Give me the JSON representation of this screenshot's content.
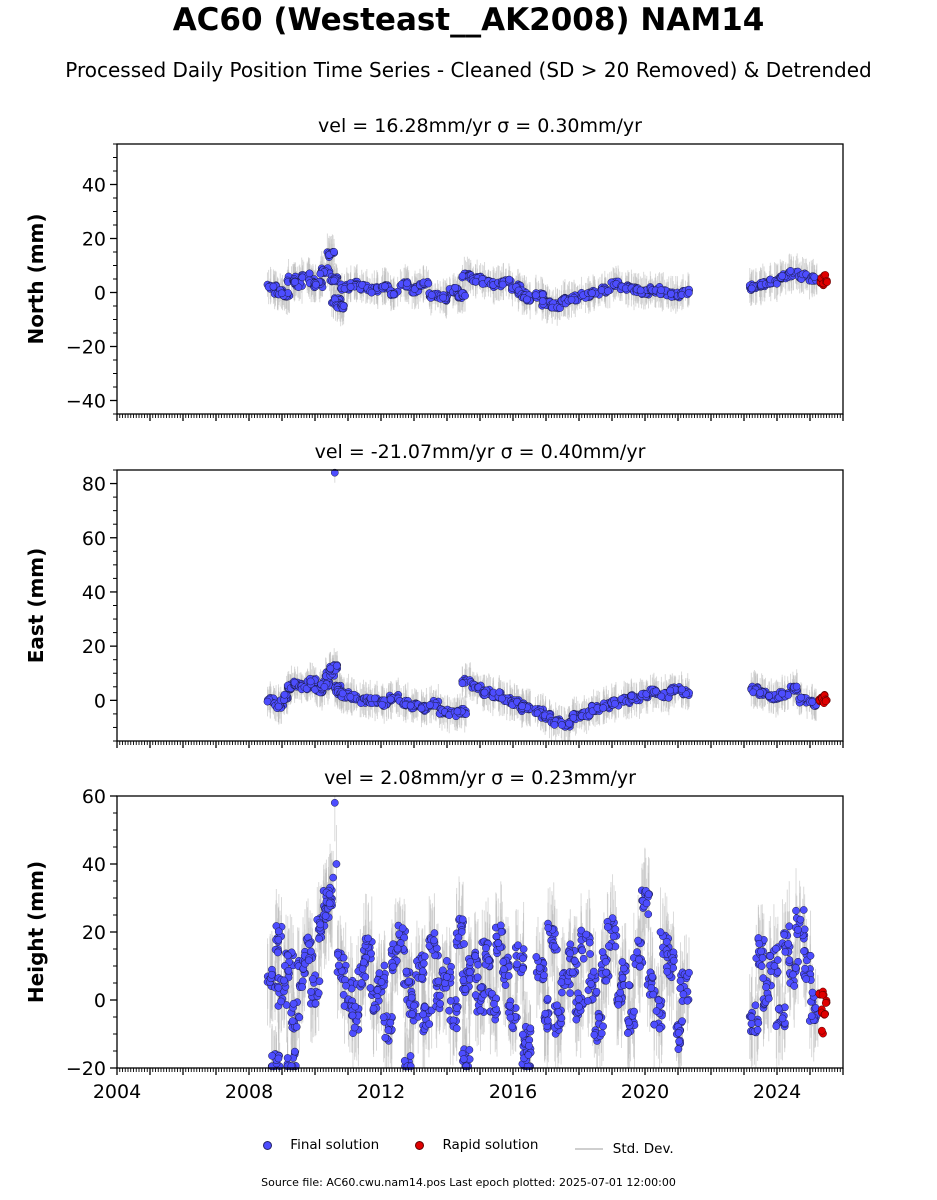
{
  "header": {
    "title": "AC60 (Westeast__AK2008) NAM14",
    "subtitle": "Processed Daily Position Time Series - Cleaned (SD > 20 Removed) & Detrended"
  },
  "legend": {
    "final": "Final solution",
    "rapid": "Rapid solution",
    "std": "Std. Dev."
  },
  "footer": {
    "text": "Source file: AC60.cwu.nam14.pos  Last epoch plotted: 2025-07-01 12:00:00"
  },
  "colors": {
    "final": "#4d4dff",
    "rapid": "#e00000",
    "std_dev": "#bdbdbd"
  },
  "chart_data": [
    {
      "type": "scatter",
      "title": "vel = 16.28mm/yr   σ = 0.30mm/yr",
      "ylabel": "North (mm)",
      "xlim": [
        2004,
        2026
      ],
      "ylim": [
        -45,
        55
      ],
      "yticks": [
        -40,
        -20,
        0,
        20,
        40
      ],
      "series": [
        {
          "name": "Final solution",
          "x": [
            2008.7,
            2008.9,
            2009.1,
            2009.3,
            2009.5,
            2009.7,
            2009.9,
            2010.1,
            2010.3,
            2010.45,
            2010.55,
            2010.65,
            2010.75,
            2010.9,
            2011.2,
            2011.5,
            2011.8,
            2012.1,
            2012.4,
            2012.7,
            2013.0,
            2013.3,
            2013.6,
            2013.9,
            2014.2,
            2014.45,
            2014.6,
            2014.9,
            2015.2,
            2015.5,
            2015.8,
            2016.1,
            2016.3,
            2016.4,
            2016.8,
            2017.0,
            2017.3,
            2017.6,
            2017.9,
            2018.2,
            2018.5,
            2018.8,
            2019.1,
            2019.4,
            2019.7,
            2020.0,
            2020.3,
            2020.6,
            2020.9,
            2021.2,
            2023.3,
            2023.6,
            2023.9,
            2024.2,
            2024.5,
            2024.8,
            2025.1
          ],
          "y": [
            2,
            0,
            -1,
            5,
            3,
            6,
            4,
            3,
            8,
            14,
            5,
            -3,
            -5,
            2,
            3,
            2,
            1,
            2,
            0,
            3,
            1,
            3,
            -1,
            -2,
            1,
            -1,
            6,
            5,
            4,
            3,
            4,
            2,
            0,
            -2,
            -1,
            -4,
            -5,
            -3,
            -2,
            -1,
            0,
            1,
            3,
            2,
            1,
            0,
            1,
            0,
            -1,
            0,
            2,
            3,
            4,
            6,
            7,
            6,
            5
          ]
        },
        {
          "name": "Rapid solution",
          "x": [
            2025.3,
            2025.35,
            2025.4,
            2025.45,
            2025.5
          ],
          "y": [
            4,
            5,
            3,
            6,
            4
          ]
        }
      ]
    },
    {
      "type": "scatter",
      "title": "vel = -21.07mm/yr   σ = 0.40mm/yr",
      "ylabel": "East (mm)",
      "xlim": [
        2004,
        2026
      ],
      "ylim": [
        -15,
        85
      ],
      "yticks": [
        0,
        20,
        40,
        60,
        80
      ],
      "series": [
        {
          "name": "Final solution",
          "x": [
            2008.7,
            2008.9,
            2009.1,
            2009.3,
            2009.5,
            2009.7,
            2009.9,
            2010.1,
            2010.3,
            2010.45,
            2010.55,
            2010.65,
            2010.75,
            2010.9,
            2011.2,
            2011.5,
            2011.8,
            2012.1,
            2012.4,
            2012.7,
            2013.0,
            2013.3,
            2013.6,
            2013.9,
            2014.2,
            2014.45,
            2014.6,
            2014.9,
            2015.2,
            2015.5,
            2015.8,
            2016.1,
            2016.3,
            2016.4,
            2016.8,
            2017.0,
            2017.3,
            2017.6,
            2017.9,
            2018.2,
            2018.5,
            2018.8,
            2019.1,
            2019.4,
            2019.7,
            2020.0,
            2020.3,
            2020.6,
            2020.9,
            2021.2,
            2023.3,
            2023.6,
            2023.9,
            2024.2,
            2024.5,
            2024.8,
            2025.1,
            2010.6
          ],
          "y": [
            0,
            -2,
            1,
            5,
            6,
            5,
            7,
            4,
            6,
            10,
            12,
            5,
            3,
            2,
            1,
            0,
            0,
            -1,
            1,
            -1,
            -2,
            -3,
            -1,
            -4,
            -5,
            -4,
            7,
            5,
            3,
            2,
            0,
            -1,
            -2,
            -3,
            -4,
            -6,
            -8,
            -9,
            -6,
            -5,
            -3,
            -2,
            -1,
            0,
            1,
            2,
            3,
            2,
            4,
            3,
            4,
            3,
            1,
            2,
            4,
            0,
            -1,
            84
          ]
        },
        {
          "name": "Rapid solution",
          "x": [
            2025.3,
            2025.35,
            2025.4,
            2025.45,
            2025.5
          ],
          "y": [
            0,
            1,
            -1,
            2,
            0
          ]
        }
      ]
    },
    {
      "type": "scatter",
      "title": "vel = 2.08mm/yr   σ = 0.23mm/yr",
      "ylabel": "Height (mm)",
      "xlabel": "",
      "xlim": [
        2004,
        2026
      ],
      "ylim": [
        -20,
        60
      ],
      "yticks": [
        -20,
        0,
        20,
        40,
        60
      ],
      "xticks": [
        2004,
        2008,
        2012,
        2016,
        2020,
        2024
      ],
      "series": [
        {
          "name": "Final solution",
          "x": [
            2008.7,
            2008.85,
            2009.0,
            2009.2,
            2009.4,
            2009.6,
            2009.8,
            2010.0,
            2010.2,
            2010.4,
            2010.55,
            2010.65,
            2010.8,
            2011.0,
            2011.2,
            2011.4,
            2011.6,
            2011.8,
            2012.0,
            2012.2,
            2012.4,
            2012.6,
            2012.8,
            2013.0,
            2013.2,
            2013.4,
            2013.6,
            2013.8,
            2014.0,
            2014.2,
            2014.4,
            2014.6,
            2014.8,
            2015.0,
            2015.2,
            2015.4,
            2015.6,
            2015.8,
            2016.0,
            2016.2,
            2016.4,
            2016.8,
            2017.0,
            2017.2,
            2017.4,
            2017.6,
            2017.8,
            2018.0,
            2018.2,
            2018.4,
            2018.6,
            2018.8,
            2019.0,
            2019.2,
            2019.4,
            2019.6,
            2019.8,
            2020.0,
            2020.2,
            2020.4,
            2020.6,
            2020.8,
            2021.0,
            2021.2,
            2023.3,
            2023.5,
            2023.7,
            2023.9,
            2024.1,
            2024.3,
            2024.5,
            2024.7,
            2024.9,
            2025.1,
            2010.6,
            2010.4,
            2008.8,
            2009.3,
            2012.8,
            2014.6,
            2016.4
          ],
          "y": [
            6,
            18,
            2,
            10,
            -4,
            8,
            14,
            3,
            20,
            30,
            36,
            40,
            10,
            2,
            -6,
            8,
            14,
            0,
            6,
            -8,
            12,
            18,
            4,
            -2,
            10,
            -6,
            16,
            2,
            8,
            -4,
            20,
            6,
            10,
            0,
            14,
            -2,
            18,
            8,
            -4,
            12,
            -12,
            10,
            -4,
            18,
            -6,
            6,
            12,
            -2,
            16,
            4,
            -8,
            10,
            20,
            2,
            8,
            -6,
            14,
            28,
            6,
            -4,
            16,
            10,
            -10,
            4,
            -6,
            14,
            2,
            12,
            -4,
            18,
            8,
            22,
            10,
            -2,
            58,
            28,
            -20,
            -19,
            -20,
            -18,
            -16
          ]
        },
        {
          "name": "Rapid solution",
          "x": [
            2025.3,
            2025.35,
            2025.4,
            2025.45,
            2025.5,
            2025.38
          ],
          "y": [
            1,
            -3,
            2,
            -5,
            0,
            -9
          ]
        }
      ]
    }
  ]
}
